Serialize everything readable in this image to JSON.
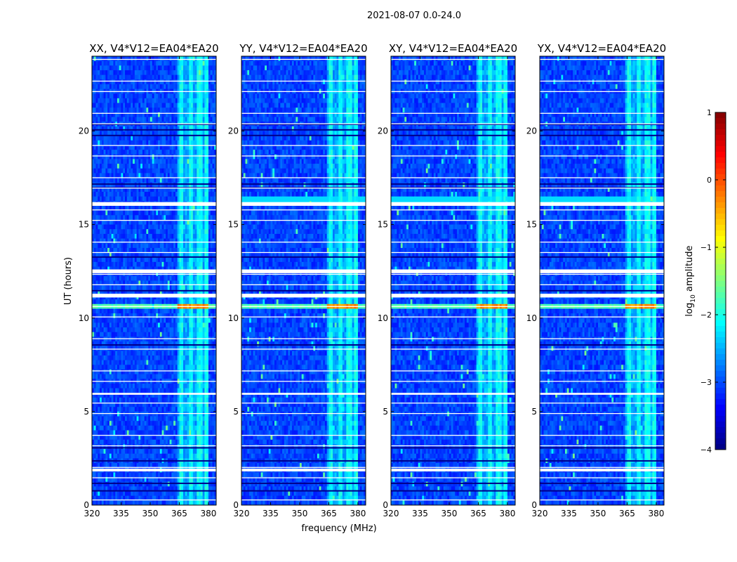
{
  "figure": {
    "suptitle": "2021-08-07 0.0-24.0"
  },
  "chart_data": {
    "type": "heatmap",
    "panels": [
      {
        "title": "XX, V4*V12=EA04*EA20",
        "polarization": "XX"
      },
      {
        "title": "YY, V4*V12=EA04*EA20",
        "polarization": "YY"
      },
      {
        "title": "XY, V4*V12=EA04*EA20",
        "polarization": "XY"
      },
      {
        "title": "YX, V4*V12=EA04*EA20",
        "polarization": "YX"
      }
    ],
    "xlabel": "frequency (MHz)",
    "ylabel": "UT (hours)",
    "xlim": [
      320,
      384
    ],
    "ylim": [
      0,
      24
    ],
    "xticks": [
      320,
      335,
      350,
      365,
      380
    ],
    "xtick_labels": [
      "320",
      "335",
      "350",
      "365",
      "380"
    ],
    "yticks": [
      0,
      5,
      10,
      15,
      20
    ],
    "ytick_labels": [
      "0",
      "5",
      "10",
      "15",
      "20"
    ],
    "colorbar": {
      "label": "log10 amplitude",
      "label_base": "log",
      "label_sub": "10",
      "label_rest": " amplitude",
      "range": [
        -4,
        1
      ],
      "colormap": "jet",
      "ticks": [
        -4,
        -3,
        -2,
        -1,
        0,
        1
      ],
      "tick_labels": [
        "−4",
        "−3",
        "−2",
        "−1",
        "0",
        "1"
      ]
    },
    "features": {
      "rfi_band_mhz": [
        364,
        380
      ],
      "rfi_channel_centers_mhz": [
        366,
        371,
        375.5,
        379
      ],
      "flagged_gaps_ut": [
        [
          16.0,
          16.2
        ],
        [
          12.4,
          12.6
        ],
        [
          5.9,
          6.0
        ],
        [
          1.8,
          1.95
        ],
        [
          11.1,
          11.3
        ]
      ],
      "bright_interval_ut": [
        10.45,
        10.8
      ]
    }
  }
}
